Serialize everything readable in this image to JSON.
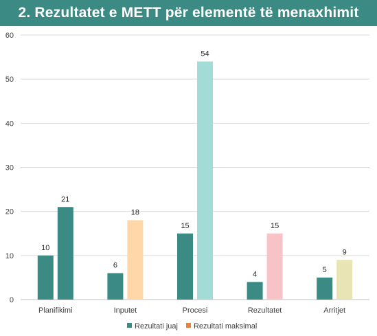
{
  "header": {
    "title": "2. Rezultatet e METT për elementë të menaxhimit"
  },
  "chart_data": {
    "type": "bar",
    "title": "2. Rezultatet e METT për elementë të menaxhimit",
    "xlabel": "",
    "ylabel": "",
    "ylim": [
      0,
      60
    ],
    "yticks": [
      0,
      10,
      20,
      30,
      40,
      50,
      60
    ],
    "grid": true,
    "legend_position": "bottom",
    "categories": [
      "Planifikimi",
      "Inputet",
      "Procesi",
      "Rezultatet",
      "Arritjet"
    ],
    "series": [
      {
        "name": "Rezultati juaj",
        "values": [
          10,
          6,
          15,
          4,
          5
        ],
        "colors": [
          "#3b8a84",
          "#3b8a84",
          "#3b8a84",
          "#3b8a84",
          "#3b8a84"
        ]
      },
      {
        "name": "Rezultati maksimal",
        "values": [
          21,
          18,
          54,
          15,
          9
        ],
        "colors": [
          "#3b8a84",
          "#ffd7a8",
          "#a3dcd7",
          "#f7c3c7",
          "#e8e4b3"
        ]
      }
    ],
    "legend_swatch_colors": [
      "#3b8a84",
      "#e6823d"
    ]
  }
}
